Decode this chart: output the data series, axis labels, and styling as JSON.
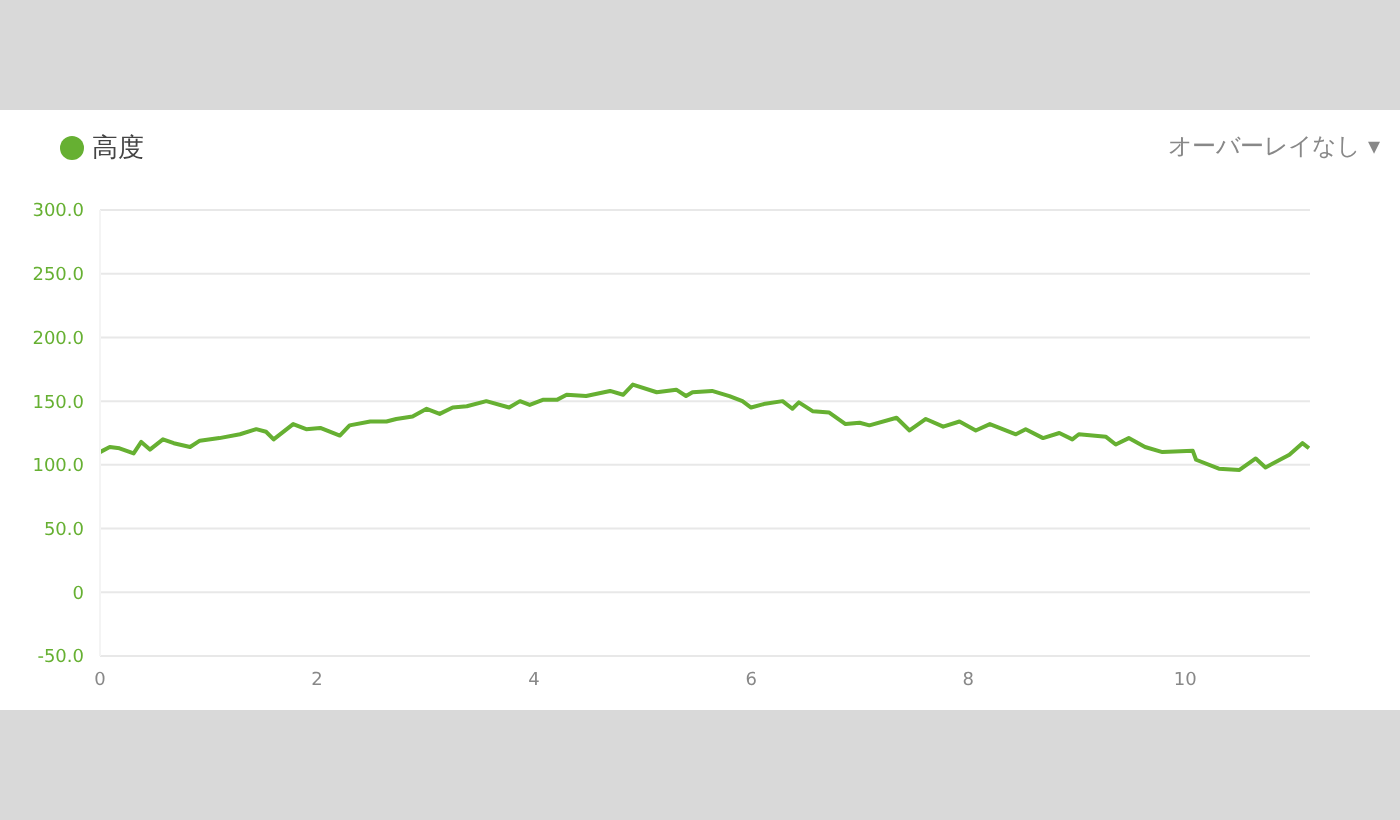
{
  "chart_data": {
    "type": "line",
    "x": [
      0,
      0.09,
      0.18,
      0.31,
      0.38,
      0.46,
      0.58,
      0.68,
      0.83,
      0.92,
      1.1,
      1.29,
      1.44,
      1.53,
      1.6,
      1.78,
      1.9,
      2.03,
      2.21,
      2.3,
      2.49,
      2.64,
      2.73,
      2.88,
      3.01,
      3.13,
      3.25,
      3.38,
      3.56,
      3.77,
      3.87,
      3.96,
      4.08,
      4.21,
      4.3,
      4.48,
      4.7,
      4.82,
      4.91,
      5.13,
      5.31,
      5.4,
      5.46,
      5.64,
      5.8,
      5.92,
      6.0,
      6.13,
      6.29,
      6.38,
      6.44,
      6.57,
      6.72,
      6.87,
      7.0,
      7.09,
      7.34,
      7.46,
      7.61,
      7.77,
      7.92,
      8.07,
      8.2,
      8.44,
      8.53,
      8.69,
      8.84,
      8.96,
      9.02,
      9.27,
      9.36,
      9.48,
      9.63,
      9.79,
      10.07,
      10.1,
      10.31,
      10.5,
      10.65,
      10.74,
      10.96,
      11.08,
      11.14
    ],
    "series": [
      {
        "name": "高度",
        "color": "#66b032",
        "values": [
          110,
          114,
          113,
          109,
          118,
          112,
          120,
          117,
          114,
          119,
          121,
          124,
          128,
          126,
          120,
          132,
          128,
          129,
          123,
          131,
          134,
          134,
          136,
          138,
          144,
          140,
          145,
          146,
          150,
          145,
          150,
          147,
          151,
          151,
          155,
          154,
          158,
          155,
          163,
          157,
          159,
          154,
          157,
          158,
          154,
          150,
          145,
          148,
          150,
          144,
          149,
          142,
          141,
          132,
          133,
          131,
          137,
          127,
          136,
          130,
          134,
          127,
          132,
          124,
          128,
          121,
          125,
          120,
          124,
          122,
          116,
          121,
          114,
          110,
          111,
          104,
          97,
          96,
          105,
          98,
          108,
          117,
          113
        ]
      }
    ],
    "xlim": [
      0,
      11.15
    ],
    "xticks": [
      0,
      2,
      4,
      6,
      8,
      10
    ],
    "ylim": [
      -50,
      300
    ],
    "yticks": [
      {
        "value": 300,
        "label": "300.0"
      },
      {
        "value": 250,
        "label": "250.0"
      },
      {
        "value": 200,
        "label": "200.0"
      },
      {
        "value": 150,
        "label": "150.0"
      },
      {
        "value": 100,
        "label": "100.0"
      },
      {
        "value": 50,
        "label": "50.0"
      },
      0,
      {
        "value": -50,
        "label": "-50.0"
      }
    ],
    "grid": "y",
    "legend": "top left",
    "marker": "none",
    "line_style": "solid",
    "annotations": [
      "オーバーレイなし ▾"
    ]
  }
}
